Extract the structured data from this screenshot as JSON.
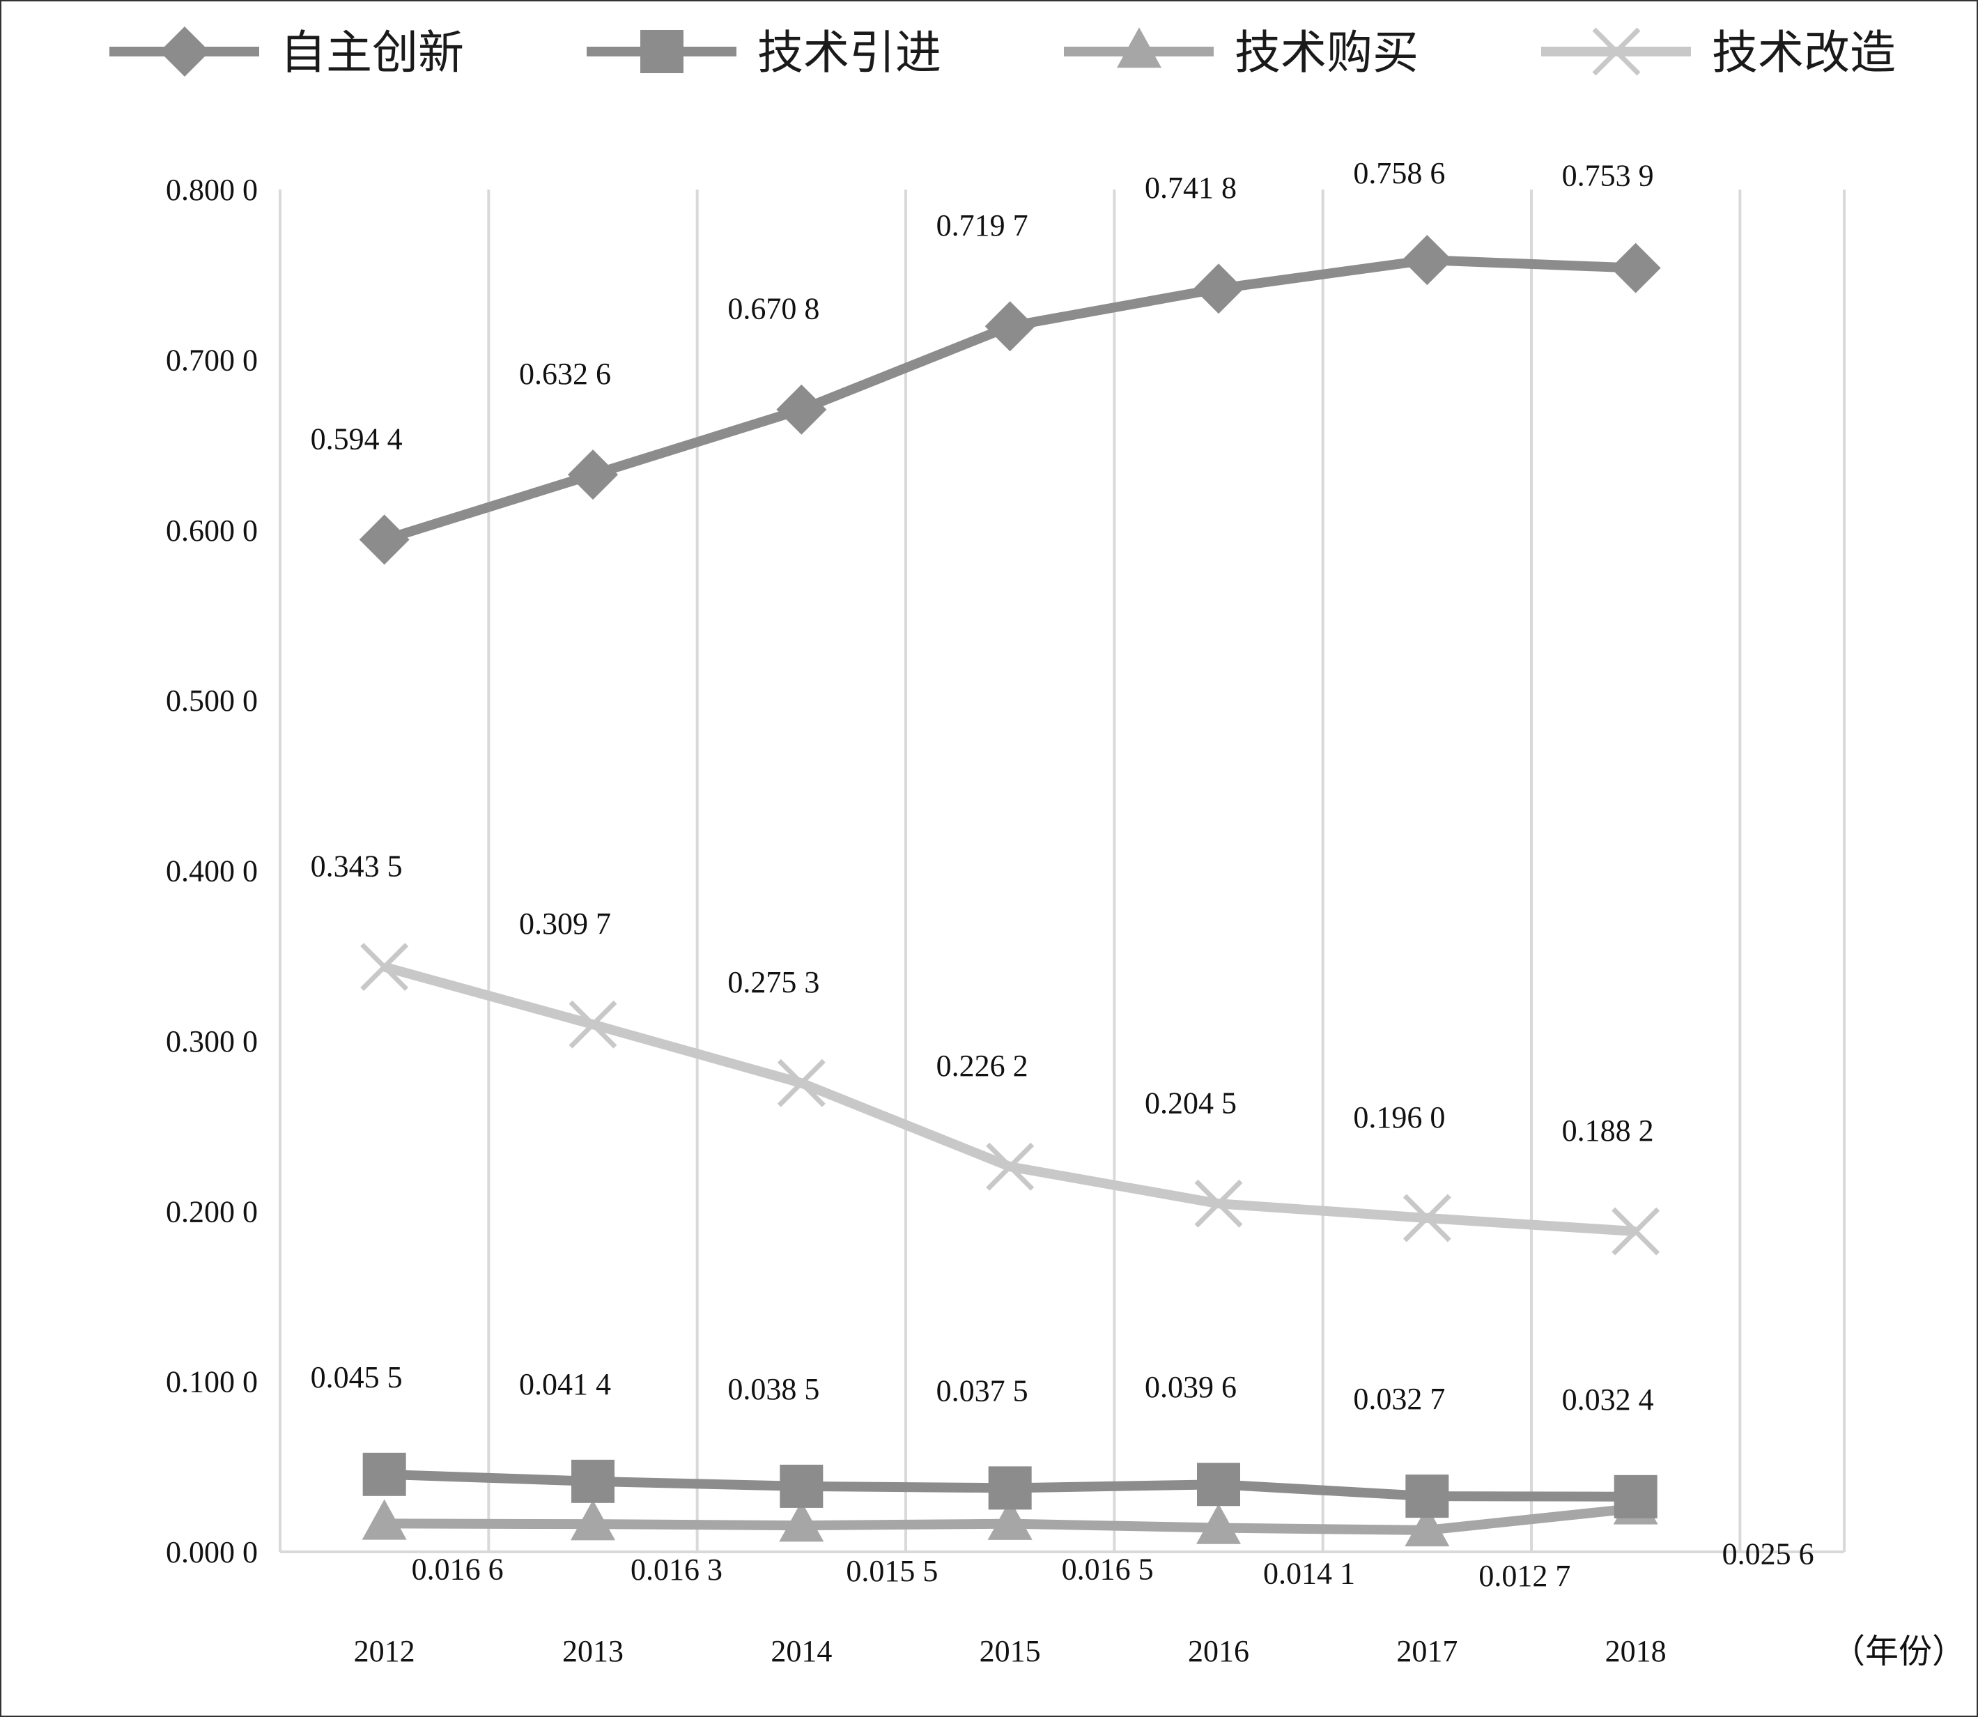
{
  "chart_data": {
    "type": "line",
    "x_unit_label": "（年份）",
    "categories": [
      "2012",
      "2013",
      "2014",
      "2015",
      "2016",
      "2017",
      "2018"
    ],
    "y_ticks": [
      "0.000 0",
      "0.100 0",
      "0.200 0",
      "0.300 0",
      "0.400 0",
      "0.500 0",
      "0.600 0",
      "0.700 0",
      "0.800 0"
    ],
    "ylim": [
      0,
      0.8
    ],
    "grid": "vertical",
    "legend_position": "top",
    "series": [
      {
        "name": "自主创新",
        "marker": "diamond",
        "color": "#8c8c8c",
        "values": [
          0.5944,
          0.6326,
          0.6708,
          0.7197,
          0.7418,
          0.7586,
          0.7539
        ],
        "labels": [
          "0.594 4",
          "0.632 6",
          "0.670 8",
          "0.719 7",
          "0.741 8",
          "0.758 6",
          "0.753 9"
        ]
      },
      {
        "name": "技术引进",
        "marker": "square",
        "color": "#8c8c8c",
        "values": [
          0.0455,
          0.0414,
          0.0385,
          0.0375,
          0.0396,
          0.0327,
          0.0324
        ],
        "labels": [
          "0.045 5",
          "0.041 4",
          "0.038 5",
          "0.037 5",
          "0.039 6",
          "0.032 7",
          "0.032 4"
        ]
      },
      {
        "name": "技术购买",
        "marker": "triangle",
        "color": "#a6a6a6",
        "values": [
          0.0166,
          0.0163,
          0.0155,
          0.0165,
          0.0141,
          0.0127,
          0.0256
        ],
        "labels": [
          "0.016 6",
          "0.016 3",
          "0.015 5",
          "0.016 5",
          "0.014 1",
          "0.012 7",
          "0.025 6"
        ]
      },
      {
        "name": "技术改造",
        "marker": "x",
        "color": "#c8c8c8",
        "values": [
          0.3435,
          0.3097,
          0.2753,
          0.2262,
          0.2045,
          0.196,
          0.1882
        ],
        "labels": [
          "0.343 5",
          "0.309 7",
          "0.275 3",
          "0.226 2",
          "0.204 5",
          "0.196 0",
          "0.188 2"
        ]
      }
    ]
  }
}
